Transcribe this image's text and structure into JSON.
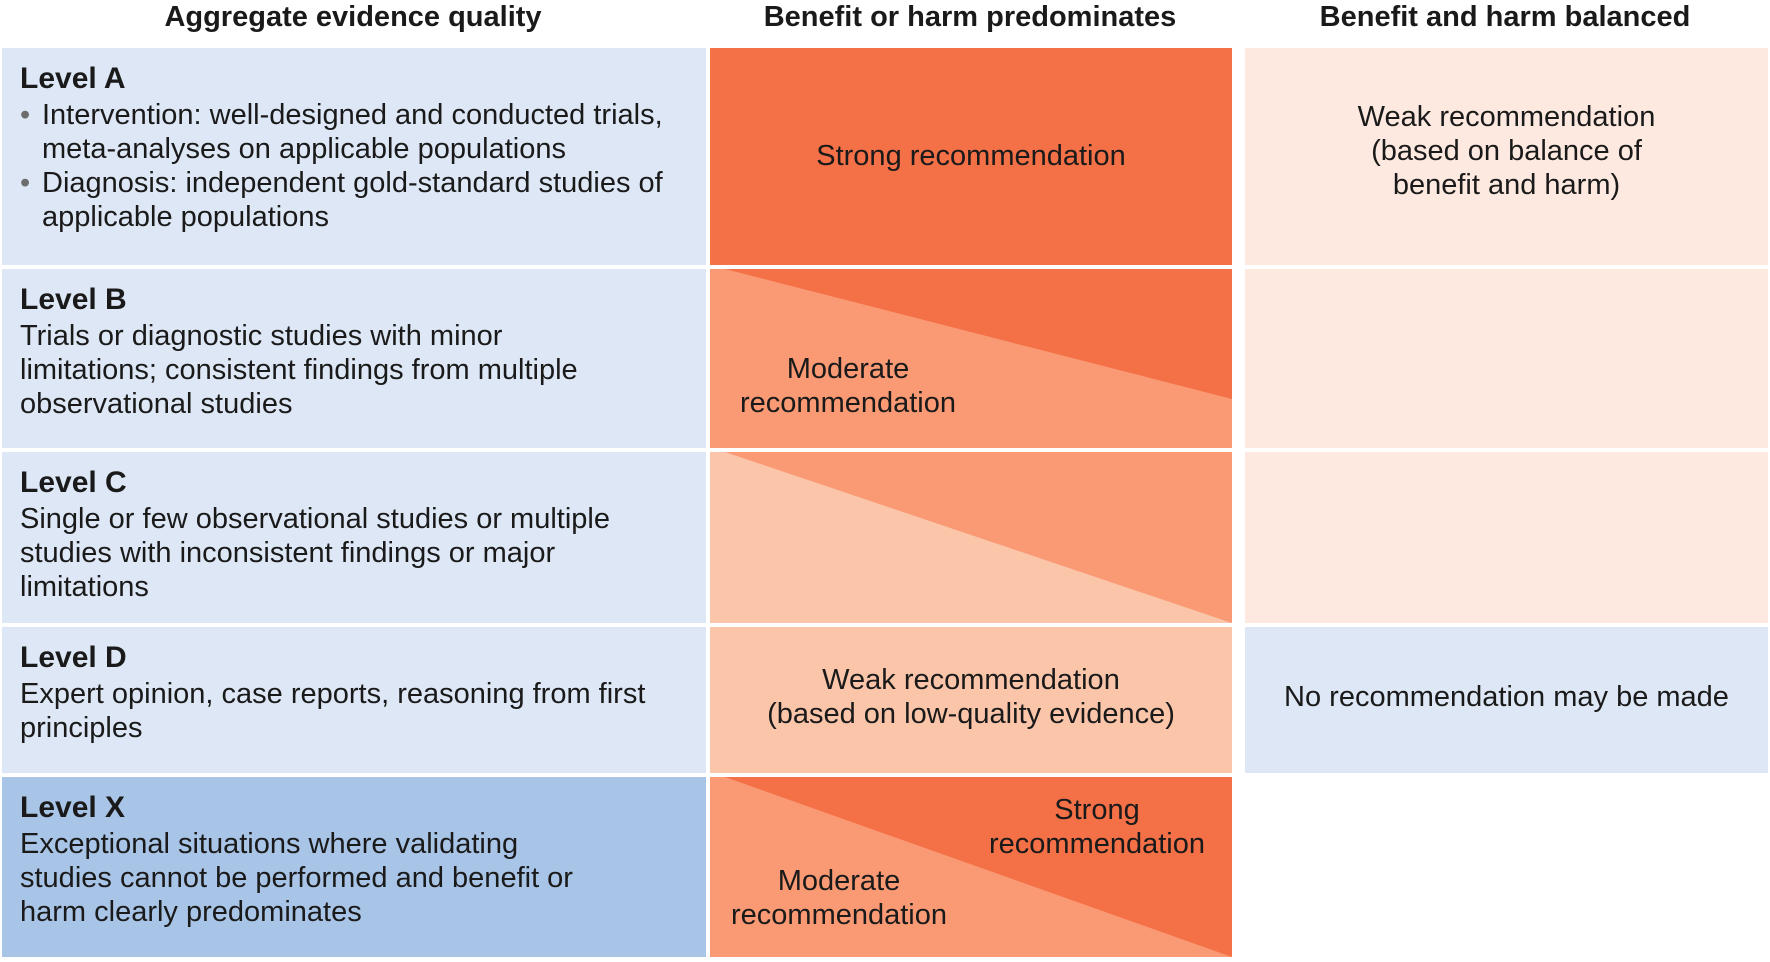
{
  "headers": {
    "col1": "Aggregate evidence quality",
    "col2": "Benefit or harm predominates",
    "col3": "Benefit and harm balanced"
  },
  "levels": [
    {
      "name": "Level A",
      "bullets": [
        "Intervention: well-designed and conducted trials, meta-analyses on applicable populations",
        "Diagnosis: independent gold-standard studies of applicable populations"
      ]
    },
    {
      "name": "Level B",
      "description": "Trials or diagnostic studies with minor limitations; consistent findings from multiple observational studies"
    },
    {
      "name": "Level C",
      "description": "Single or few observational studies or multiple studies with inconsistent findings or major limitations"
    },
    {
      "name": "Level D",
      "description": "Expert opinion, case reports, reasoning from first principles"
    },
    {
      "name": "Level X",
      "description": "Exceptional situations where validating studies cannot be performed and benefit or harm clearly predominates"
    }
  ],
  "recommendations": {
    "strong": "Strong recommendation",
    "moderate_line1": "Moderate",
    "moderate_line2": "recommendation",
    "weak_low_line1": "Weak recommendation",
    "weak_low_line2": "(based on low-quality evidence)",
    "weak_balance_line1": "Weak recommendation",
    "weak_balance_line2": "(based on balance of",
    "weak_balance_line3": "benefit and harm)",
    "none": "No recommendation may be made",
    "x_strong_line1": "Strong",
    "x_strong_line2": "recommendation",
    "x_moderate_line1": "Moderate",
    "x_moderate_line2": "recommendation"
  },
  "colors": {
    "strong": "#f47047",
    "moderate": "#fa9a74",
    "weak": "#fbc5aa",
    "balanced_light": "#fde9df",
    "level_bg": "#dde7f5",
    "level_x_bg": "#a8c4e6"
  }
}
